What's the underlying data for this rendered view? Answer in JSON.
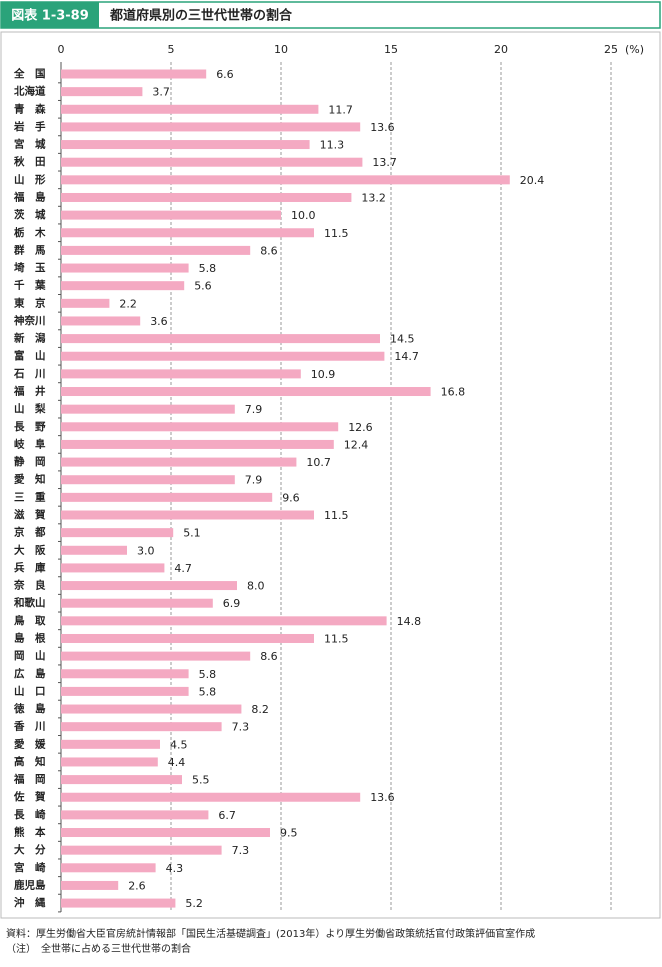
{
  "header": {
    "figure_label": "図表 1-3-89",
    "title": "都道府県別の三世代世帯の割合"
  },
  "chart_data": {
    "type": "bar",
    "orientation": "horizontal",
    "color": "#f4a9c2",
    "grid": true,
    "x_unit": "(%)",
    "xlim": [
      0,
      25
    ],
    "xticks": [
      0,
      5,
      10,
      15,
      20,
      25
    ],
    "categories": [
      "全　国",
      "北海道",
      "青　森",
      "岩　手",
      "宮　城",
      "秋　田",
      "山　形",
      "福　島",
      "茨　城",
      "栃　木",
      "群　馬",
      "埼　玉",
      "千　葉",
      "東　京",
      "神奈川",
      "新　潟",
      "富　山",
      "石　川",
      "福　井",
      "山　梨",
      "長　野",
      "岐　阜",
      "静　岡",
      "愛　知",
      "三　重",
      "滋　賀",
      "京　都",
      "大　阪",
      "兵　庫",
      "奈　良",
      "和歌山",
      "鳥　取",
      "島　根",
      "岡　山",
      "広　島",
      "山　口",
      "徳　島",
      "香　川",
      "愛　媛",
      "高　知",
      "福　岡",
      "佐　賀",
      "長　崎",
      "熊　本",
      "大　分",
      "宮　崎",
      "鹿児島",
      "沖　縄"
    ],
    "values": [
      6.6,
      3.7,
      11.7,
      13.6,
      11.3,
      13.7,
      20.4,
      13.2,
      10.0,
      11.5,
      8.6,
      5.8,
      5.6,
      2.2,
      3.6,
      14.5,
      14.7,
      10.9,
      16.8,
      7.9,
      12.6,
      12.4,
      10.7,
      7.9,
      9.6,
      11.5,
      5.1,
      3.0,
      4.7,
      8.0,
      6.9,
      14.8,
      11.5,
      8.6,
      5.8,
      5.8,
      8.2,
      7.3,
      4.5,
      4.4,
      5.5,
      13.6,
      6.7,
      9.5,
      7.3,
      4.3,
      2.6,
      5.2
    ],
    "value_labels": [
      "6.6",
      "3.7",
      "11.7",
      "13.6",
      "11.3",
      "13.7",
      "20.4",
      "13.2",
      "10.0",
      "11.5",
      "8.6",
      "5.8",
      "5.6",
      "2.2",
      "3.6",
      "14.5",
      "14.7",
      "10.9",
      "16.8",
      "7.9",
      "12.6",
      "12.4",
      "10.7",
      "7.9",
      "9.6",
      "11.5",
      "5.1",
      "3.0",
      "4.7",
      "8.0",
      "6.9",
      "14.8",
      "11.5",
      "8.6",
      "5.8",
      "5.8",
      "8.2",
      "7.3",
      "4.5",
      "4.4",
      "5.5",
      "13.6",
      "6.7",
      "9.5",
      "7.3",
      "4.3",
      "2.6",
      "5.2"
    ]
  },
  "notes": [
    "資料：厚生労働省大臣官房統計情報部「国民生活基礎調査」(2013年）より厚生労働省政策統括官付政策評価官室作成",
    "（注）　全世帯に占める三世代世帯の割合"
  ]
}
